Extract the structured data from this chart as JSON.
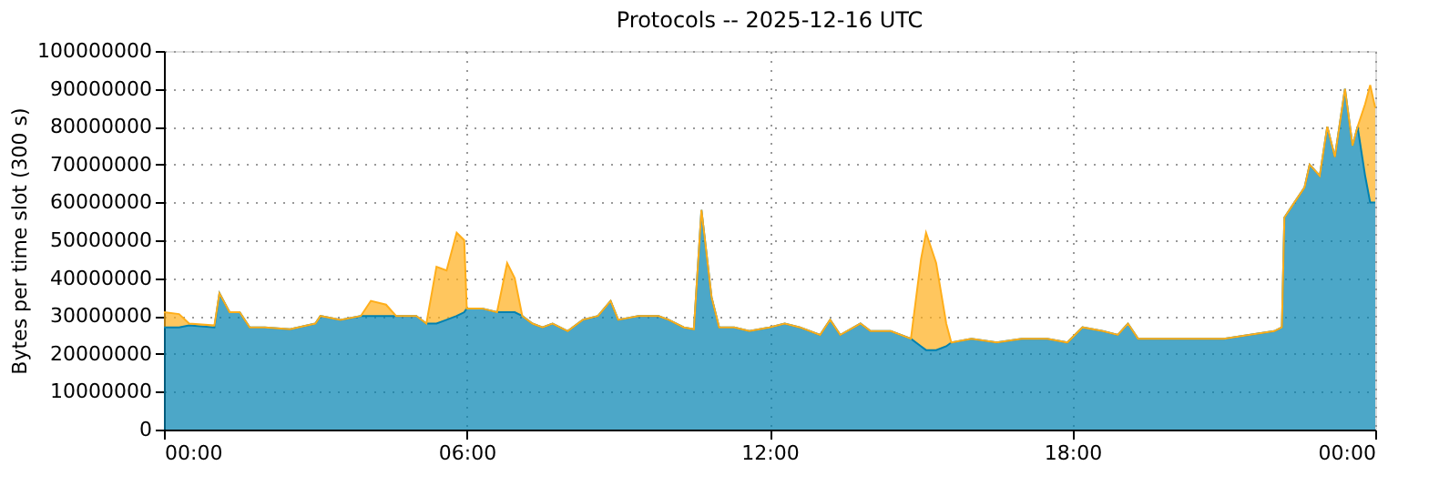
{
  "chart_data": {
    "type": "area",
    "stacked": true,
    "title": "Protocols -- 2025-12-16 UTC",
    "ylabel": "Bytes per time slot (300 s)",
    "x": [
      0,
      0.3,
      0.5,
      1.0,
      1.1,
      1.3,
      1.5,
      1.7,
      2.0,
      2.5,
      3.0,
      3.1,
      3.5,
      3.9,
      4.1,
      4.4,
      4.6,
      5.0,
      5.2,
      5.4,
      5.6,
      5.8,
      5.95,
      6.0,
      6.3,
      6.6,
      6.8,
      6.95,
      7.1,
      7.3,
      7.5,
      7.7,
      8.0,
      8.3,
      8.6,
      8.85,
      9.0,
      9.4,
      9.8,
      10.0,
      10.3,
      10.5,
      10.65,
      10.85,
      11.0,
      11.3,
      11.6,
      12.0,
      12.3,
      12.6,
      13.0,
      13.2,
      13.4,
      13.8,
      14.0,
      14.4,
      14.8,
      15.0,
      15.1,
      15.3,
      15.5,
      15.6,
      16.0,
      16.5,
      17.0,
      17.5,
      17.9,
      18.2,
      18.6,
      18.9,
      19.1,
      19.3,
      20.0,
      20.5,
      21.0,
      21.5,
      22.0,
      22.15,
      22.2,
      22.4,
      22.6,
      22.7,
      22.9,
      23.05,
      23.2,
      23.4,
      23.55,
      23.65,
      23.8,
      23.9,
      24.0
    ],
    "series": [
      {
        "color": "#0081b0",
        "values": [
          27000000,
          27000000,
          27500000,
          27000000,
          36000000,
          31000000,
          31000000,
          27000000,
          27000000,
          26500000,
          28000000,
          30000000,
          29000000,
          30000000,
          30000000,
          30000000,
          30000000,
          30000000,
          28000000,
          28000000,
          29000000,
          30000000,
          31000000,
          32000000,
          32000000,
          31000000,
          31000000,
          31000000,
          30000000,
          28000000,
          27000000,
          28000000,
          26000000,
          29000000,
          30000000,
          34000000,
          29000000,
          30000000,
          30000000,
          29000000,
          27000000,
          26500000,
          58000000,
          35000000,
          27000000,
          27000000,
          26000000,
          27000000,
          28000000,
          27000000,
          25000000,
          29000000,
          25000000,
          28000000,
          26000000,
          26000000,
          24000000,
          22000000,
          21000000,
          21000000,
          22000000,
          23000000,
          24000000,
          23000000,
          24000000,
          24000000,
          23000000,
          27000000,
          26000000,
          25000000,
          28000000,
          24000000,
          24000000,
          24000000,
          24000000,
          25000000,
          26000000,
          27000000,
          56000000,
          60000000,
          64000000,
          70000000,
          67000000,
          80000000,
          72000000,
          90000000,
          75000000,
          80000000,
          67000000,
          60000000,
          60000000
        ]
      },
      {
        "color": "#ffae1a",
        "values": [
          4000000,
          3500000,
          500000,
          500000,
          0,
          0,
          0,
          0,
          0,
          0,
          0,
          0,
          0,
          0,
          4000000,
          3000000,
          0,
          0,
          0,
          15000000,
          13000000,
          22000000,
          19000000,
          0,
          0,
          0,
          13000000,
          9000000,
          0,
          0,
          0,
          0,
          0,
          0,
          0,
          0,
          0,
          0,
          0,
          0,
          0,
          0,
          0,
          0,
          0,
          0,
          0,
          0,
          0,
          0,
          0,
          0,
          0,
          0,
          0,
          0,
          0,
          23000000,
          31000000,
          23000000,
          6000000,
          0,
          0,
          0,
          0,
          0,
          0,
          0,
          0,
          0,
          0,
          0,
          0,
          0,
          0,
          0,
          0,
          0,
          0,
          0,
          0,
          0,
          0,
          0,
          0,
          0,
          0,
          0,
          19000000,
          31000000,
          25000000
        ]
      }
    ],
    "xlim": [
      0,
      24
    ],
    "xticks": [
      {
        "value": 0,
        "label": "00:00"
      },
      {
        "value": 6,
        "label": "06:00"
      },
      {
        "value": 12,
        "label": "12:00"
      },
      {
        "value": 18,
        "label": "18:00"
      },
      {
        "value": 24,
        "label": "00:00"
      }
    ],
    "ylim": [
      0,
      100000000
    ],
    "yticks": [
      0,
      10000000,
      20000000,
      30000000,
      40000000,
      50000000,
      60000000,
      70000000,
      80000000,
      90000000,
      100000000
    ],
    "grid": true,
    "legend": false
  }
}
